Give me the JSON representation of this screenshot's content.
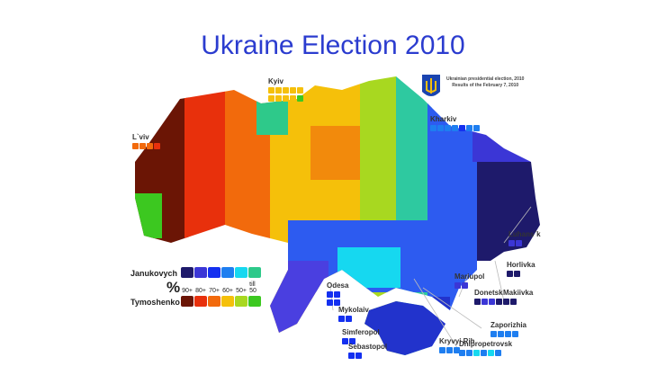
{
  "title": "Ukraine Election 2010",
  "header": {
    "line1": "Ukrainian presidential election, 2010",
    "line2": "Results of the February 7, 2010",
    "emblem": "trident-coat-of-arms"
  },
  "legend": {
    "candidate1": "Janukovych",
    "candidate2": "Tymoshenko",
    "percent_symbol": "%",
    "levels": [
      "90+",
      "80+",
      "70+",
      "60+",
      "50+",
      "till 50"
    ],
    "colors1": [
      "#1e1a6b",
      "#3b36d6",
      "#1430f0",
      "#1e7ef0",
      "#16d8f0",
      "#2ec98a"
    ],
    "colors2": [
      "#6b1505",
      "#e8300c",
      "#f26a0c",
      "#f5c00a",
      "#a8d820",
      "#3cc820"
    ]
  },
  "cities": [
    {
      "name": "Kyiv",
      "colors": [
        "#f5c00a",
        "#f5c00a",
        "#f5c00a",
        "#f5c00a",
        "#f5c00a",
        "#f5c00a",
        "#f5c00a",
        "#f5c00a",
        "#f5c00a",
        "#3cc820"
      ]
    },
    {
      "name": "L`viv",
      "colors": [
        "#f26a0c",
        "#f26a0c",
        "#f26a0c",
        "#e8300c"
      ]
    },
    {
      "name": "Kharkiv",
      "colors": [
        "#1e7ef0",
        "#1e7ef0",
        "#1e7ef0",
        "#1e7ef0",
        "#1430f0",
        "#1e7ef0",
        "#1e7ef0"
      ]
    },
    {
      "name": "Luhans`k",
      "colors": [
        "#3b36d6",
        "#3b36d6"
      ]
    },
    {
      "name": "Horlivka",
      "colors": [
        "#1e1a6b",
        "#1e1a6b"
      ]
    },
    {
      "name": "Mariupol",
      "colors": [
        "#3b36d6",
        "#3b36d6"
      ]
    },
    {
      "name": "Donetsk",
      "colors": [
        "#1e1a6b",
        "#3b36d6",
        "#3b36d6",
        "#1e1a6b"
      ]
    },
    {
      "name": "Makiivka",
      "colors": [
        "#1e1a6b",
        "#1e1a6b"
      ]
    },
    {
      "name": "Zaporizhia",
      "colors": [
        "#1e7ef0",
        "#1e7ef0",
        "#1e7ef0",
        "#1e7ef0"
      ]
    },
    {
      "name": "Kryvyi Rih",
      "colors": [
        "#1e7ef0",
        "#1e7ef0",
        "#1e7ef0"
      ]
    },
    {
      "name": "Dnipropetrovsk",
      "colors": [
        "#1e7ef0",
        "#1e7ef0",
        "#16d8f0",
        "#1e7ef0",
        "#16d8f0",
        "#1e7ef0"
      ]
    },
    {
      "name": "Odesa",
      "colors": [
        "#1430f0",
        "#1430f0",
        "#1430f0",
        "#1430f0"
      ]
    },
    {
      "name": "Mykolaiv",
      "colors": [
        "#1430f0",
        "#1430f0"
      ]
    },
    {
      "name": "Simferopol",
      "colors": [
        "#1430f0",
        "#1430f0"
      ]
    },
    {
      "name": "Sebastopol",
      "colors": [
        "#1430f0",
        "#1430f0"
      ]
    }
  ]
}
